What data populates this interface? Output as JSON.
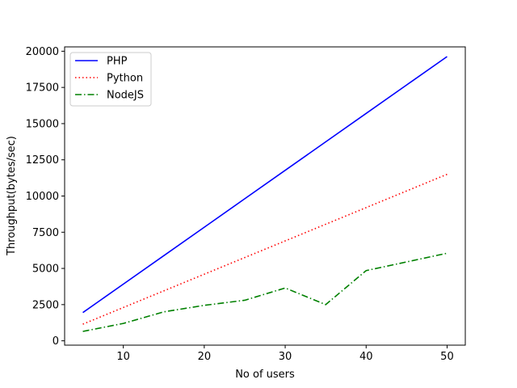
{
  "chart_data": {
    "type": "line",
    "title": "",
    "xlabel": "No of users",
    "ylabel": "Throughput(bytes/sec)",
    "xlim": [
      2.75,
      52.25
    ],
    "ylim": [
      -300,
      20300
    ],
    "xticks": [
      10,
      20,
      30,
      40,
      50
    ],
    "yticks": [
      0,
      2500,
      5000,
      7500,
      10000,
      12500,
      15000,
      17500,
      20000
    ],
    "grid": false,
    "legend_position": "upper-left",
    "x": [
      5,
      10,
      15,
      20,
      25,
      30,
      35,
      40,
      45,
      50
    ],
    "series": [
      {
        "name": "PHP",
        "color": "#0000ff",
        "style": "solid",
        "values": [
          1950,
          3915,
          5880,
          7845,
          9810,
          11775,
          13740,
          15705,
          17670,
          19630
        ]
      },
      {
        "name": "Python",
        "color": "#ff0000",
        "style": "dotted",
        "values": [
          1150,
          2300,
          3450,
          4600,
          5750,
          6900,
          8050,
          9200,
          10350,
          11500
        ]
      },
      {
        "name": "NodeJS",
        "color": "#008000",
        "style": "dashdot",
        "values": [
          650,
          1200,
          2000,
          2450,
          2800,
          3650,
          2500,
          4850,
          5450,
          6050
        ]
      }
    ]
  }
}
